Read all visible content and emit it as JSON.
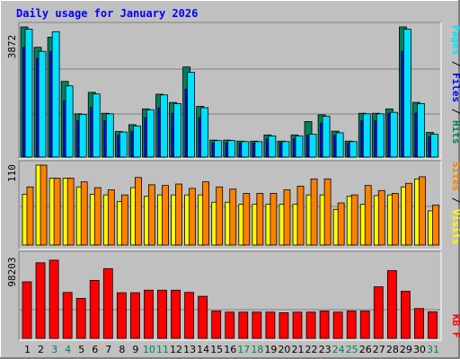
{
  "chart_data": {
    "type": "bar",
    "title": "Daily usage for January 2026",
    "categories": [
      "1",
      "2",
      "3",
      "4",
      "5",
      "6",
      "7",
      "8",
      "9",
      "10",
      "11",
      "12",
      "13",
      "14",
      "15",
      "16",
      "17",
      "18",
      "19",
      "20",
      "21",
      "22",
      "23",
      "24",
      "25",
      "26",
      "27",
      "28",
      "29",
      "30",
      "31"
    ],
    "weekend_days": [
      3,
      4,
      10,
      11,
      17,
      18,
      24,
      25,
      31
    ],
    "panels": [
      {
        "id": "top",
        "ymax": 3872,
        "ymax_label": "3872",
        "series": [
          {
            "name": "Hits",
            "color": "#00805c",
            "values": [
              3872,
              3265,
              3566,
              2251,
              1287,
              1927,
              1303,
              760,
              964,
              1432,
              1870,
              1624,
              2681,
              1509,
              505,
              505,
              474,
              474,
              659,
              474,
              659,
              1056,
              1256,
              771,
              474,
              1303,
              1303,
              1432,
              3872,
              1627,
              732
            ]
          },
          {
            "name": "Files",
            "color": "#0000ff",
            "values": [
              3265,
              2930,
              3144,
              1670,
              1077,
              1476,
              1077,
              645,
              759,
              1174,
              1463,
              1303,
              2021,
              1174,
              420,
              420,
              410,
              410,
              540,
              420,
              540,
              645,
              1010,
              645,
              410,
              1077,
              1077,
              1303,
              3144,
              1303,
              600
            ]
          },
          {
            "name": "Pages",
            "color": "#00e0ff",
            "values": [
              3804,
              3145,
              3730,
              2118,
              1270,
              1878,
              1286,
              746,
              925,
              1408,
              1849,
              1587,
              2520,
              1469,
              490,
              490,
              459,
              459,
              630,
              459,
              630,
              678,
              1213,
              722,
              459,
              1286,
              1286,
              1330,
              3804,
              1592,
              679
            ]
          }
        ]
      },
      {
        "id": "mid",
        "ymax": 110,
        "ymax_label": "110",
        "series": [
          {
            "name": "Visits",
            "color": "#ffff00",
            "values": [
              70,
              110,
              92,
              92,
              80,
              70,
              69,
              60,
              79,
              67,
              69,
              69,
              69,
              69,
              59,
              59,
              56,
              56,
              56,
              56,
              56,
              69,
              69,
              49,
              67,
              56,
              68,
              69,
              80,
              91,
              47
            ]
          },
          {
            "name": "Sites",
            "color": "#ff8000",
            "values": [
              80,
              110,
              92,
              92,
              87,
              79,
              76,
              69,
              93,
              83,
              82,
              84,
              78,
              87,
              80,
              77,
              71,
              71,
              71,
              76,
              81,
              91,
              91,
              58,
              69,
              82,
              75,
              71,
              85,
              94,
              55
            ]
          }
        ]
      },
      {
        "id": "bottom",
        "ymax": 98203,
        "ymax_label": "98203",
        "series": [
          {
            "name": "KB F",
            "color": "#ff0000",
            "values": [
              66500,
              88900,
              92000,
              54000,
              47000,
              68200,
              82000,
              53700,
              53700,
              56700,
              56700,
              56700,
              54100,
              49500,
              32200,
              30900,
              30900,
              30900,
              30900,
              30200,
              30900,
              30900,
              32200,
              30900,
              32200,
              32200,
              60700,
              79700,
              55400,
              35100,
              31200
            ]
          }
        ]
      }
    ]
  },
  "right_labels": {
    "top": [
      {
        "text": "Pages",
        "color": "#00e0ff"
      },
      {
        "text": " / ",
        "color": "#000000"
      },
      {
        "text": "Files",
        "color": "#0000ff"
      },
      {
        "text": " / ",
        "color": "#000000"
      },
      {
        "text": "Hits",
        "color": "#00805c"
      }
    ],
    "mid": [
      {
        "text": "Sites",
        "color": "#ff8000"
      },
      {
        "text": " / ",
        "color": "#000000"
      },
      {
        "text": "Visits",
        "color": "#ffff00"
      }
    ],
    "bottom": [
      {
        "text": "KB F",
        "color": "#ff0000"
      }
    ]
  },
  "colors": {
    "background": "#c0c0c0",
    "title": "#0000ff",
    "day_label": "#000000",
    "weekend_label": "#00805c",
    "grid": "#808080"
  }
}
